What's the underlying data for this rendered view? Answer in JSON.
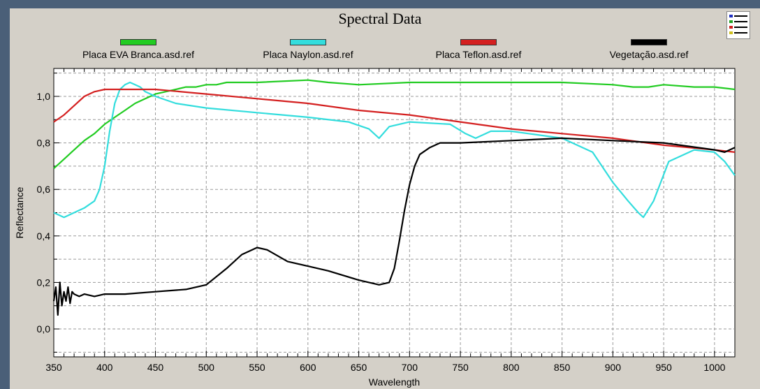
{
  "chart_data": {
    "type": "line",
    "title": "Spectral Data",
    "xlabel": "Wavelength",
    "ylabel": "Reflectance",
    "xlim": [
      350,
      1020
    ],
    "ylim": [
      -0.12,
      1.12
    ],
    "xticks": [
      350,
      400,
      450,
      500,
      550,
      600,
      650,
      700,
      750,
      800,
      850,
      900,
      950,
      1000
    ],
    "yticks": [
      0.0,
      0.2,
      0.4,
      0.6,
      0.8,
      1.0
    ],
    "ytick_labels": [
      "0,0",
      "0,2",
      "0,4",
      "0,6",
      "0,8",
      "1,0"
    ],
    "grid": true,
    "legend_position": "top",
    "series": [
      {
        "name": "Placa EVA Branca.asd.ref",
        "color": "#22cc22",
        "x": [
          350,
          360,
          370,
          380,
          390,
          400,
          410,
          420,
          430,
          440,
          450,
          460,
          470,
          480,
          490,
          500,
          510,
          520,
          550,
          600,
          620,
          650,
          700,
          750,
          800,
          850,
          900,
          920,
          935,
          950,
          980,
          1000,
          1020
        ],
        "y": [
          0.69,
          0.73,
          0.77,
          0.81,
          0.84,
          0.88,
          0.91,
          0.94,
          0.97,
          0.99,
          1.01,
          1.02,
          1.03,
          1.04,
          1.04,
          1.05,
          1.05,
          1.06,
          1.06,
          1.07,
          1.06,
          1.05,
          1.06,
          1.06,
          1.06,
          1.06,
          1.05,
          1.04,
          1.04,
          1.05,
          1.04,
          1.04,
          1.03
        ]
      },
      {
        "name": "Placa Naylon.asd.ref",
        "color": "#33dddd",
        "x": [
          350,
          360,
          370,
          380,
          390,
          395,
          400,
          405,
          410,
          415,
          420,
          425,
          430,
          435,
          440,
          450,
          470,
          500,
          550,
          600,
          640,
          660,
          670,
          680,
          700,
          740,
          755,
          765,
          780,
          800,
          850,
          880,
          900,
          915,
          925,
          930,
          940,
          955,
          980,
          1000,
          1010,
          1020
        ],
        "y": [
          0.5,
          0.48,
          0.5,
          0.52,
          0.55,
          0.6,
          0.7,
          0.85,
          0.97,
          1.03,
          1.05,
          1.06,
          1.05,
          1.04,
          1.02,
          1.0,
          0.97,
          0.95,
          0.93,
          0.91,
          0.89,
          0.86,
          0.82,
          0.87,
          0.89,
          0.88,
          0.84,
          0.82,
          0.85,
          0.85,
          0.82,
          0.76,
          0.63,
          0.55,
          0.5,
          0.48,
          0.55,
          0.72,
          0.77,
          0.76,
          0.72,
          0.66
        ]
      },
      {
        "name": "Placa Teflon.asd.ref",
        "color": "#d42020",
        "x": [
          350,
          360,
          370,
          380,
          390,
          400,
          420,
          450,
          500,
          550,
          600,
          650,
          700,
          750,
          800,
          850,
          900,
          950,
          1000,
          1020
        ],
        "y": [
          0.89,
          0.92,
          0.96,
          1.0,
          1.02,
          1.03,
          1.03,
          1.03,
          1.01,
          0.99,
          0.97,
          0.94,
          0.92,
          0.89,
          0.86,
          0.84,
          0.82,
          0.79,
          0.77,
          0.76
        ]
      },
      {
        "name": "Vegetação.asd.ref",
        "color": "#000000",
        "x": [
          350,
          352,
          354,
          356,
          358,
          360,
          362,
          364,
          366,
          368,
          370,
          375,
          380,
          390,
          400,
          420,
          450,
          480,
          500,
          520,
          535,
          550,
          560,
          580,
          600,
          620,
          650,
          670,
          680,
          685,
          690,
          695,
          700,
          705,
          710,
          720,
          730,
          750,
          800,
          850,
          900,
          950,
          1000,
          1010,
          1020
        ],
        "y": [
          0.12,
          0.18,
          0.06,
          0.2,
          0.1,
          0.16,
          0.12,
          0.18,
          0.11,
          0.16,
          0.15,
          0.14,
          0.15,
          0.14,
          0.15,
          0.15,
          0.16,
          0.17,
          0.19,
          0.26,
          0.32,
          0.35,
          0.34,
          0.29,
          0.27,
          0.25,
          0.21,
          0.19,
          0.2,
          0.26,
          0.38,
          0.51,
          0.62,
          0.7,
          0.75,
          0.78,
          0.8,
          0.8,
          0.81,
          0.82,
          0.81,
          0.8,
          0.77,
          0.76,
          0.78
        ]
      }
    ]
  },
  "ui": {
    "legend_toggle_icon": "legend-list-icon"
  }
}
